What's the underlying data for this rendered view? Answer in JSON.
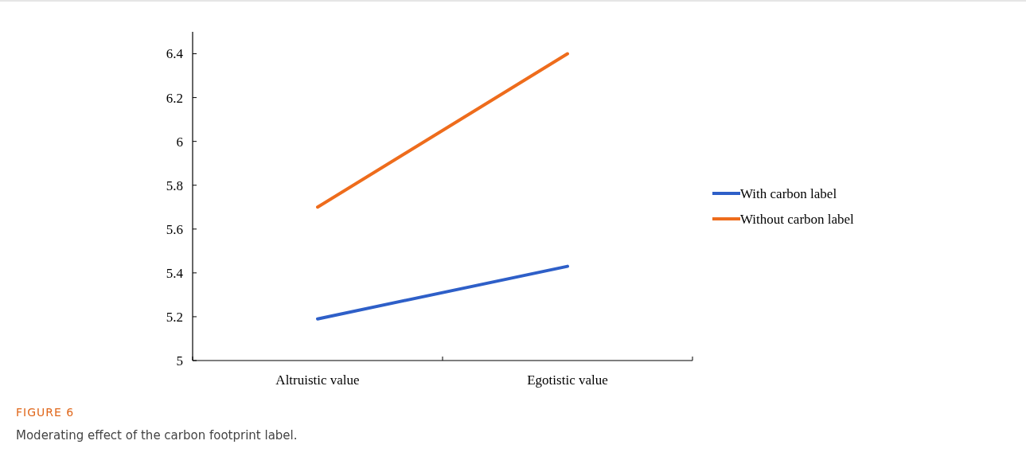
{
  "chart_data": {
    "type": "line",
    "title": "FIGURE 6",
    "annotations": [
      "Moderating effect of the carbon footprint label."
    ],
    "categories": [
      "Altruistic value",
      "Egotistic value"
    ],
    "series": [
      {
        "name": "With carbon label",
        "color": "#2e5fc8",
        "values": [
          5.19,
          5.43
        ]
      },
      {
        "name": "Without carbon label",
        "color": "#ee6c1c",
        "values": [
          5.7,
          6.4
        ]
      }
    ],
    "ylim": [
      5,
      6.5
    ],
    "yticks": [
      5,
      {
        "value": 5.2,
        "label": "5.2"
      },
      {
        "value": 5.4,
        "label": "5.4"
      },
      {
        "value": 5.6,
        "label": "5.6"
      },
      {
        "value": 5.8,
        "label": "5.8"
      },
      6,
      {
        "value": 6.2,
        "label": "6.2"
      },
      {
        "value": 6.4,
        "label": "6.4"
      }
    ],
    "legend": "right",
    "grid": false,
    "marker": "none",
    "line_style": "solid"
  }
}
